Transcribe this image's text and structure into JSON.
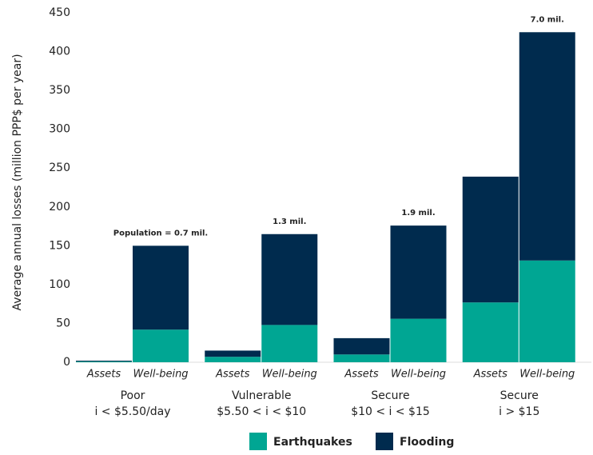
{
  "chart_data": {
    "type": "stacked_bar",
    "ylabel": "Average annual losses (million PPP$ per year)",
    "categories": [
      "Assets",
      "Well-being",
      "Assets",
      "Well-being",
      "Assets",
      "Well-being",
      "Assets",
      "Well-being"
    ],
    "groups": [
      {
        "name": "Poor",
        "subtitle": "i < $5.50/day"
      },
      {
        "name": "Vulnerable",
        "subtitle": "$5.50 < i < $10"
      },
      {
        "name": "Secure",
        "subtitle": "$10 < i < $15"
      },
      {
        "name": "Secure",
        "subtitle": "i > $15"
      }
    ],
    "series": [
      {
        "name": "Earthquakes",
        "color": "#00a693",
        "values": [
          1,
          42,
          7,
          48,
          10,
          56,
          77,
          131
        ]
      },
      {
        "name": "Flooding",
        "color": "#002b4e",
        "values": [
          1,
          108,
          8,
          117,
          21,
          120,
          162,
          294
        ]
      }
    ],
    "total_labels": [
      null,
      "Population = 0.7 mil.",
      null,
      "1.3 mil.",
      null,
      "1.9 mil.",
      null,
      "7.0 mil."
    ],
    "ylim": [
      0,
      450
    ],
    "yticks": [
      0,
      50,
      100,
      150,
      200,
      250,
      300,
      350,
      400,
      450
    ],
    "grid": false
  }
}
